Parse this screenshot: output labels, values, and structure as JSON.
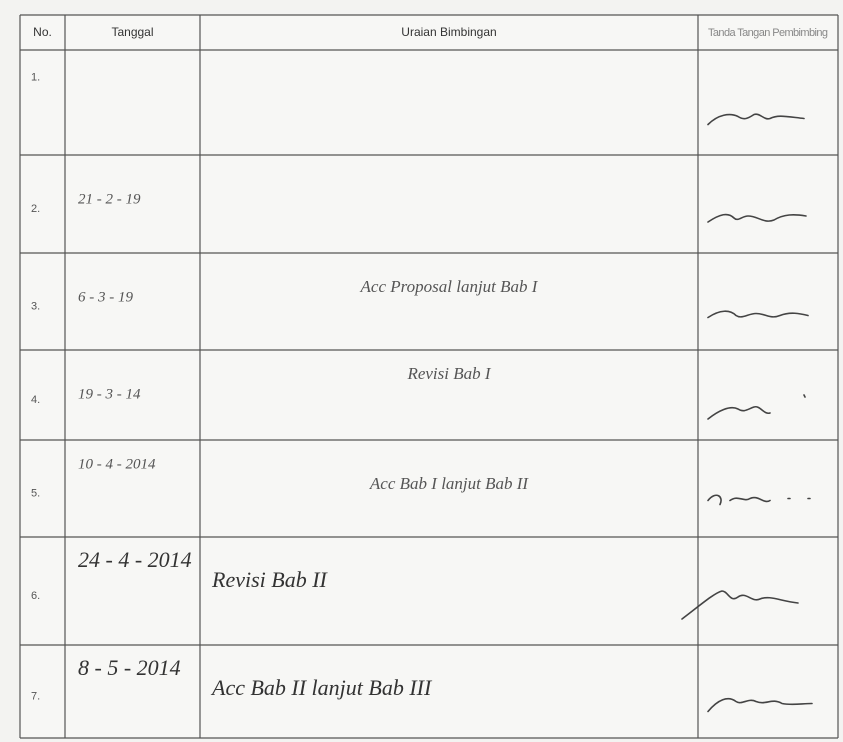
{
  "table": {
    "header": [
      "No.",
      "Tanggal",
      "Uraian Bimbingan",
      "Tanda Tangan Pembimbing"
    ],
    "rows": [
      {
        "no": "1."
      },
      {
        "no": "2.",
        "tanggal": "21 - 2 - 19"
      },
      {
        "no": "3.",
        "tanggal": "6 - 3 - 19",
        "uraian": "Acc Proposal lanjut Bab I"
      },
      {
        "no": "4.",
        "tanggal": "19 - 3 - 14",
        "uraian": "Revisi Bab I"
      },
      {
        "no": "5.",
        "tanggal": "10 - 4 - 2014",
        "uraian": "Acc Bab I lanjut Bab II"
      },
      {
        "no": "6.",
        "tanggal": "24 - 4 - 2014",
        "uraian": "Revisi Bab II"
      },
      {
        "no": "7.",
        "tanggal": "8 - 5 - 2014",
        "uraian": "Acc Bab II lanjut Bab III"
      }
    ]
  }
}
